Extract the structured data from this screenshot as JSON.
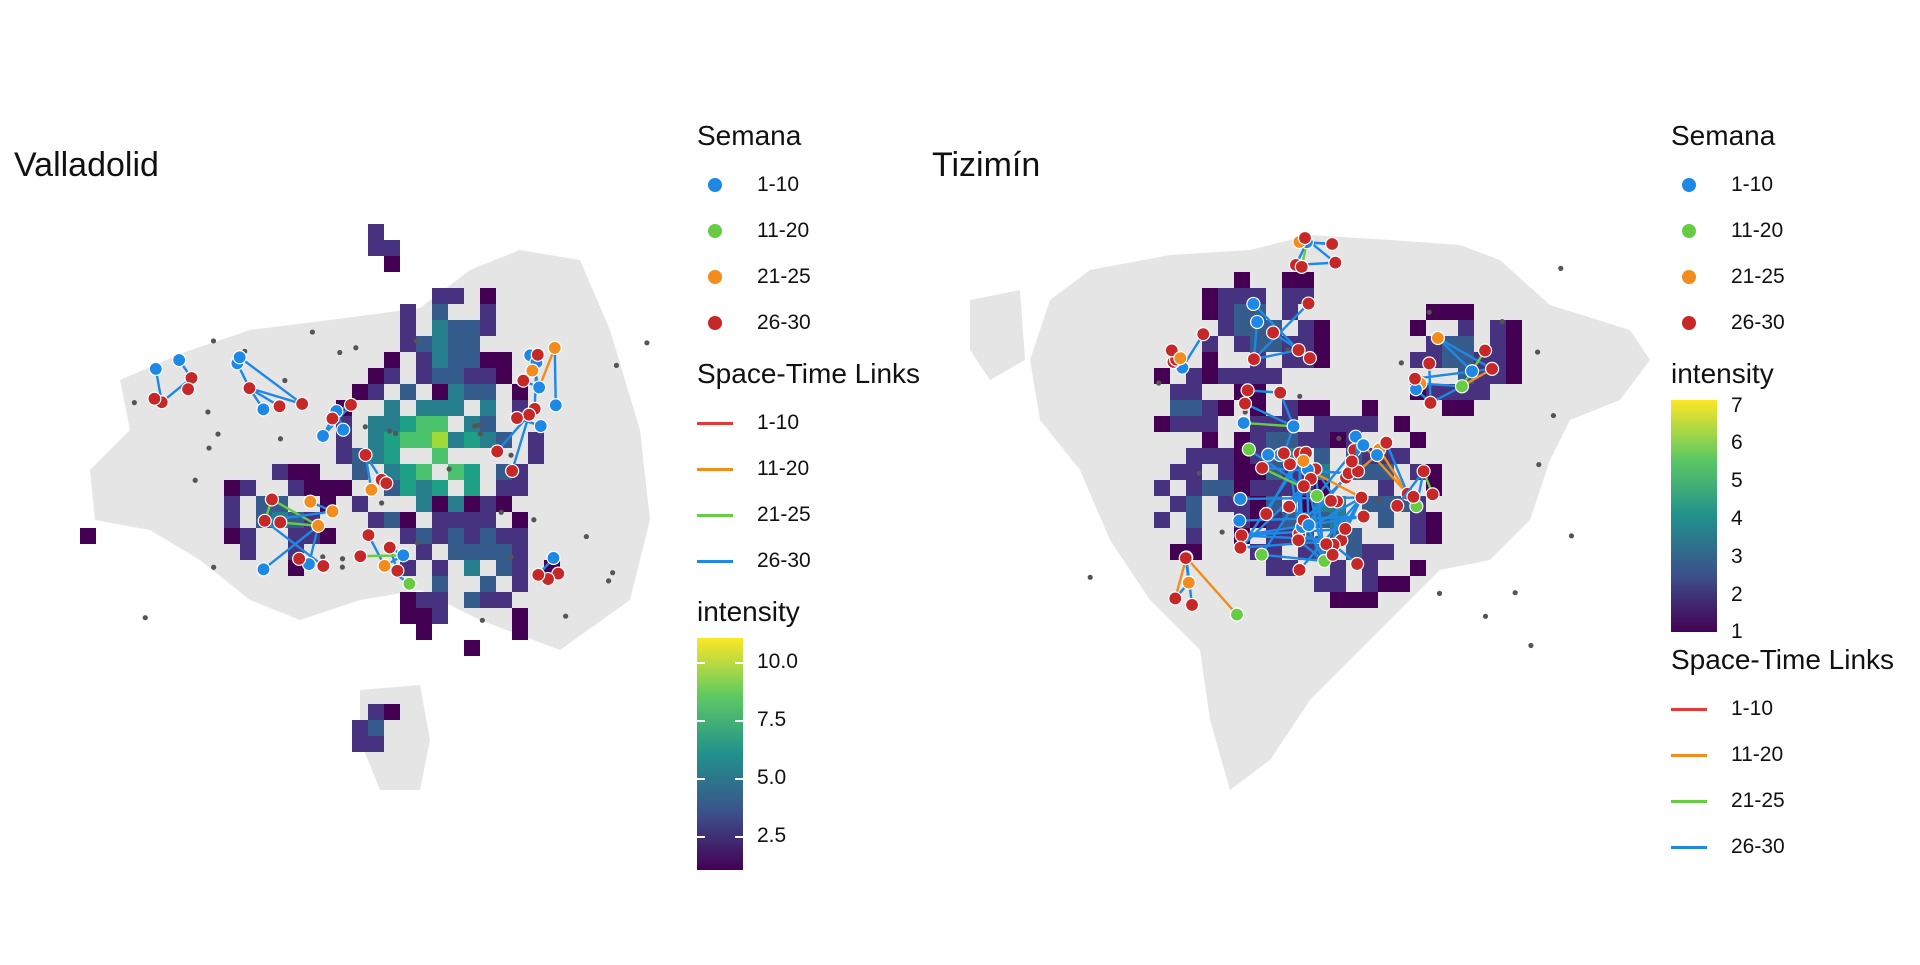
{
  "panels": {
    "left": {
      "title": "Valladolid",
      "legend": {
        "semana_title": "Semana",
        "links_title": "Space-Time Links",
        "intensity_title": "intensity",
        "intensity_ticks": [
          "10.0",
          "7.5",
          "5.0",
          "2.5"
        ]
      }
    },
    "right": {
      "title": "Tizimín",
      "legend": {
        "semana_title": "Semana",
        "links_title": "Space-Time Links",
        "intensity_title": "intensity",
        "intensity_ticks": [
          "7",
          "6",
          "5",
          "4",
          "3",
          "2",
          "1"
        ]
      }
    }
  },
  "semana_items": [
    {
      "label": "1-10",
      "color": "#1E88E5"
    },
    {
      "label": "11-20",
      "color": "#66CC44"
    },
    {
      "label": "21-25",
      "color": "#F28C1C"
    },
    {
      "label": "26-30",
      "color": "#C62828"
    }
  ],
  "link_items": [
    {
      "label": "1-10",
      "color": "#E53935"
    },
    {
      "label": "11-20",
      "color": "#F28C1C"
    },
    {
      "label": "21-25",
      "color": "#66CC44"
    },
    {
      "label": "26-30",
      "color": "#1E88E5"
    }
  ],
  "colors": {
    "city_fill": "#e5e5e5",
    "background_point": "#555555",
    "viridis": [
      "#440154",
      "#3b528b",
      "#21918c",
      "#5ec962",
      "#fde725"
    ]
  }
}
